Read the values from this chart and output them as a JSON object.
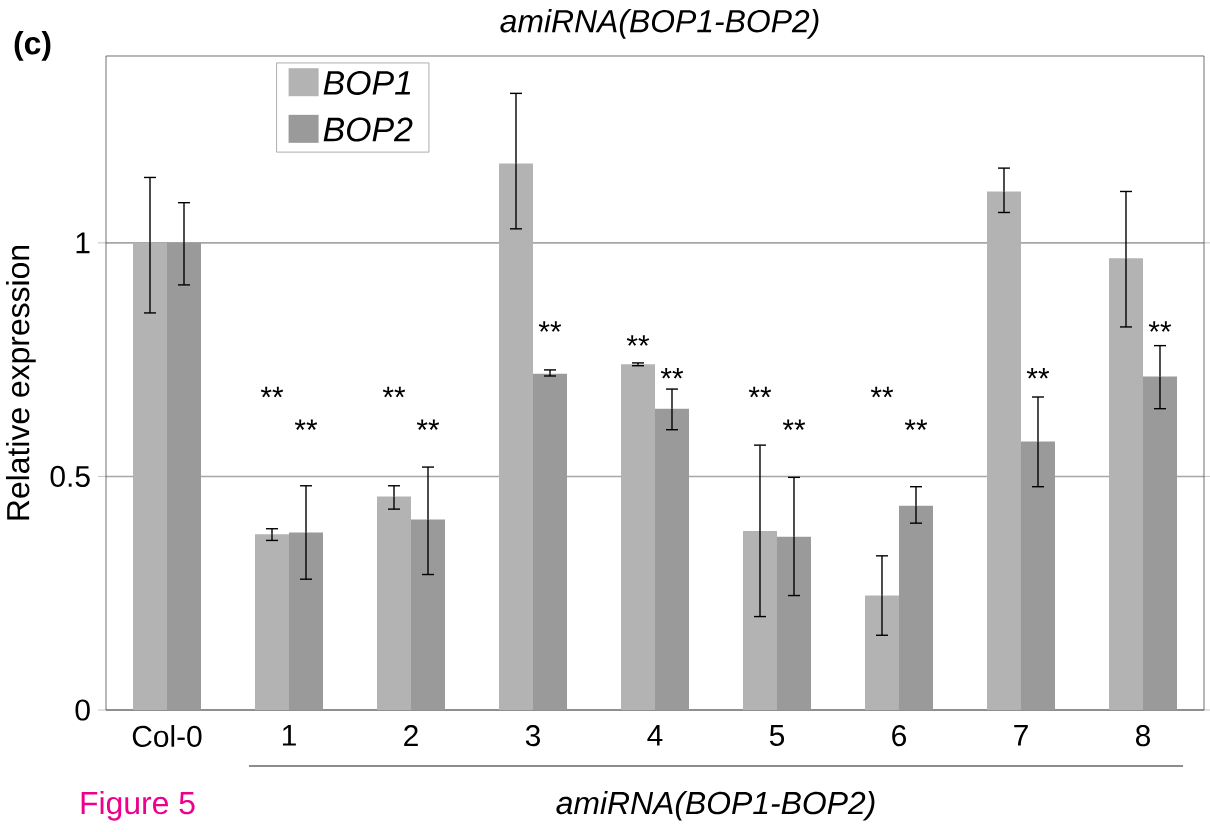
{
  "chart_data": {
    "type": "bar",
    "title": "amiRNA(BOP1-BOP2)",
    "ylabel": "Relative expression",
    "categories": [
      "Col-0",
      "1",
      "2",
      "3",
      "4",
      "5",
      "6",
      "7",
      "8"
    ],
    "series": [
      {
        "name": "BOP1",
        "color": "#b3b3b3",
        "values": [
          1.0,
          0.376,
          0.457,
          1.17,
          0.74,
          0.383,
          0.245,
          1.11,
          0.967
        ],
        "errors": [
          [
            0.85,
            1.14
          ],
          [
            0.363,
            0.388
          ],
          [
            0.43,
            0.48
          ],
          [
            1.03,
            1.32
          ],
          [
            0.737,
            0.743
          ],
          [
            0.2,
            0.567
          ],
          [
            0.16,
            0.33
          ],
          [
            1.065,
            1.16
          ],
          [
            0.82,
            1.11
          ]
        ]
      },
      {
        "name": "BOP2",
        "color": "#9a9a9a",
        "values": [
          1.0,
          0.38,
          0.408,
          0.72,
          0.645,
          0.371,
          0.437,
          0.575,
          0.714
        ],
        "errors": [
          [
            0.91,
            1.086
          ],
          [
            0.28,
            0.48
          ],
          [
            0.29,
            0.52
          ],
          [
            0.715,
            0.728
          ],
          [
            0.6,
            0.687
          ],
          [
            0.245,
            0.498
          ],
          [
            0.4,
            0.478
          ],
          [
            0.478,
            0.67
          ],
          [
            0.645,
            0.78
          ]
        ]
      }
    ],
    "ylim": [
      0,
      1.4
    ],
    "yticks": [
      0,
      0.5,
      1
    ],
    "grid": "y",
    "legend": "top left",
    "annotations": [
      "(c)",
      "Figure 5",
      "amiRNA(BOP1-BOP2)",
      "**",
      "**",
      "**",
      "**",
      "**",
      "**",
      "**",
      "**",
      "**",
      "**",
      "**",
      "**",
      "**"
    ]
  }
}
